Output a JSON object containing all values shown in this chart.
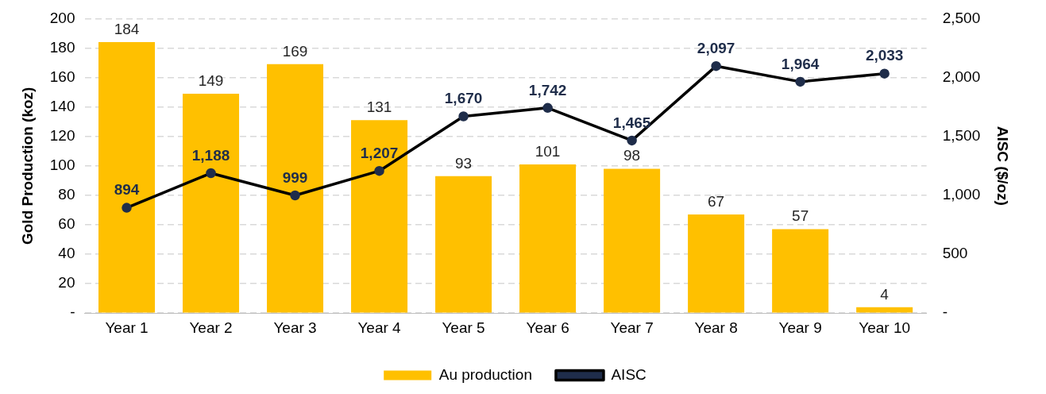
{
  "chart_data": {
    "type": "bar",
    "categories": [
      "Year 1",
      "Year 2",
      "Year 3",
      "Year 4",
      "Year 5",
      "Year 6",
      "Year 7",
      "Year 8",
      "Year 9",
      "Year 10"
    ],
    "series": [
      {
        "name": "Au production",
        "color": "#ffc000",
        "values": [
          184,
          149,
          169,
          131,
          93,
          101,
          98,
          67,
          57,
          4
        ],
        "value_labels": [
          "184",
          "149",
          "169",
          "131",
          "93",
          "101",
          "98",
          "67",
          "57",
          "4"
        ]
      },
      {
        "name": "AISC",
        "type": "line",
        "axis": "y2",
        "color": "#000000",
        "values": [
          894,
          1188,
          999,
          1207,
          1670,
          1742,
          1465,
          2097,
          1964,
          2033
        ],
        "value_labels": [
          "894",
          "1,188",
          "999",
          "1,207",
          "1,670",
          "1,742",
          "1,465",
          "2,097",
          "1,964",
          "2,033"
        ]
      }
    ],
    "ylabel": "Gold Production (koz)",
    "y2label": "AISC ($/oz)",
    "ylim": [
      0,
      200
    ],
    "yticks": [
      {
        "value": 0,
        "label": "-"
      },
      20,
      40,
      60,
      80,
      100,
      120,
      140,
      160,
      180,
      200
    ],
    "y2lim": [
      0,
      2500
    ],
    "y2ticks": [
      {
        "value": 0,
        "label": "-"
      },
      {
        "value": 500,
        "label": "500"
      },
      {
        "value": 1000,
        "label": "1,000"
      },
      {
        "value": 1500,
        "label": "1,500"
      },
      {
        "value": 2000,
        "label": "2,000"
      },
      {
        "value": 2500,
        "label": "2,500"
      }
    ],
    "grid": "y",
    "legend": "bottom",
    "marker": "circle",
    "line_style": "solid"
  }
}
